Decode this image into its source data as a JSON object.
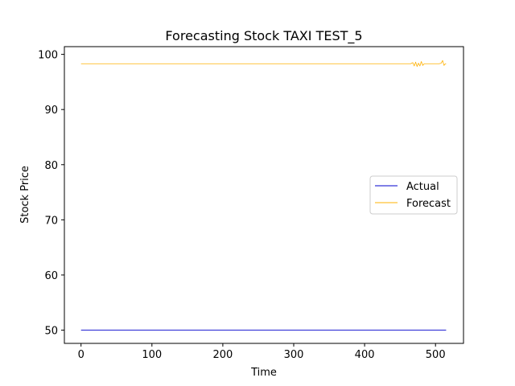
{
  "chart_data": {
    "type": "line",
    "title": "Forecasting Stock TAXI TEST_5",
    "xlabel": "Time",
    "ylabel": "Stock Price",
    "xlim": [
      -23.5,
      539.5
    ],
    "ylim": [
      47.6,
      101.4
    ],
    "xticks": [
      0,
      100,
      200,
      300,
      400,
      500
    ],
    "yticks": [
      50,
      60,
      70,
      80,
      90,
      100
    ],
    "grid": false,
    "legend_position": "center-right",
    "series": [
      {
        "name": "Actual",
        "color": "#0000cc",
        "x": [
          0,
          515
        ],
        "y": [
          50.0,
          50.0
        ]
      },
      {
        "name": "Forecast",
        "color": "#ffb000",
        "x": [
          0,
          100,
          200,
          300,
          400,
          465,
          468,
          470,
          472,
          474,
          476,
          478,
          480,
          482,
          484,
          486,
          490,
          495,
          500,
          505,
          508,
          510,
          512,
          514,
          515
        ],
        "y": [
          98.3,
          98.3,
          98.3,
          98.3,
          98.3,
          98.3,
          98.5,
          97.9,
          98.6,
          97.8,
          98.4,
          97.9,
          98.7,
          98.0,
          98.3,
          98.3,
          98.3,
          98.3,
          98.3,
          98.3,
          98.4,
          98.9,
          98.0,
          98.3,
          98.3
        ]
      }
    ]
  }
}
